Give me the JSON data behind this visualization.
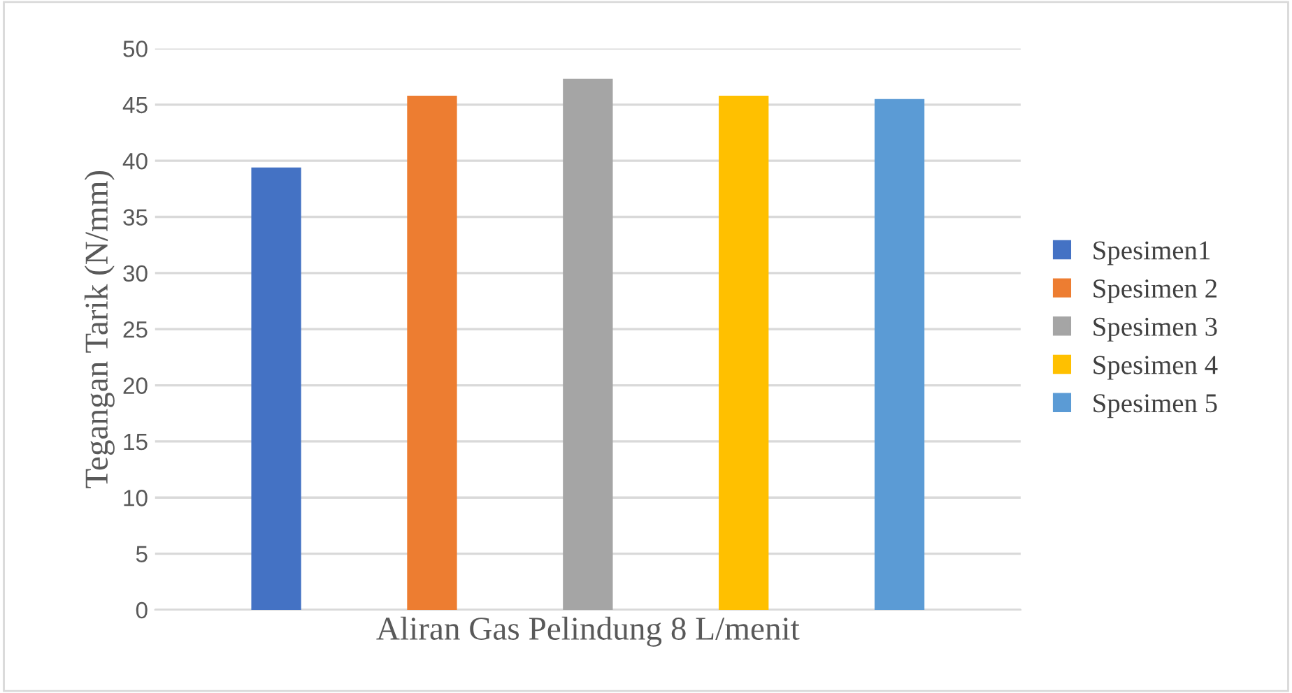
{
  "chart_data": {
    "type": "bar",
    "ylabel": "Tegangan Tarik (N/mm)",
    "categories": [
      "Aliran Gas Pelindung 8 L/menit"
    ],
    "series": [
      {
        "name": "Spesimen1",
        "color": "#4472c4",
        "values": [
          39.4
        ]
      },
      {
        "name": "Spesimen 2",
        "color": "#ed7d31",
        "values": [
          45.8
        ]
      },
      {
        "name": "Spesimen 3",
        "color": "#a5a5a5",
        "values": [
          47.3
        ]
      },
      {
        "name": "Spesimen 4",
        "color": "#ffc000",
        "values": [
          45.8
        ]
      },
      {
        "name": "Spesimen 5",
        "color": "#5b9bd5",
        "values": [
          45.5
        ]
      }
    ],
    "ylim": [
      0,
      50
    ],
    "yticks": [
      0,
      5,
      10,
      15,
      20,
      25,
      30,
      35,
      40,
      45,
      50
    ],
    "grid": "y",
    "legend": "right"
  }
}
